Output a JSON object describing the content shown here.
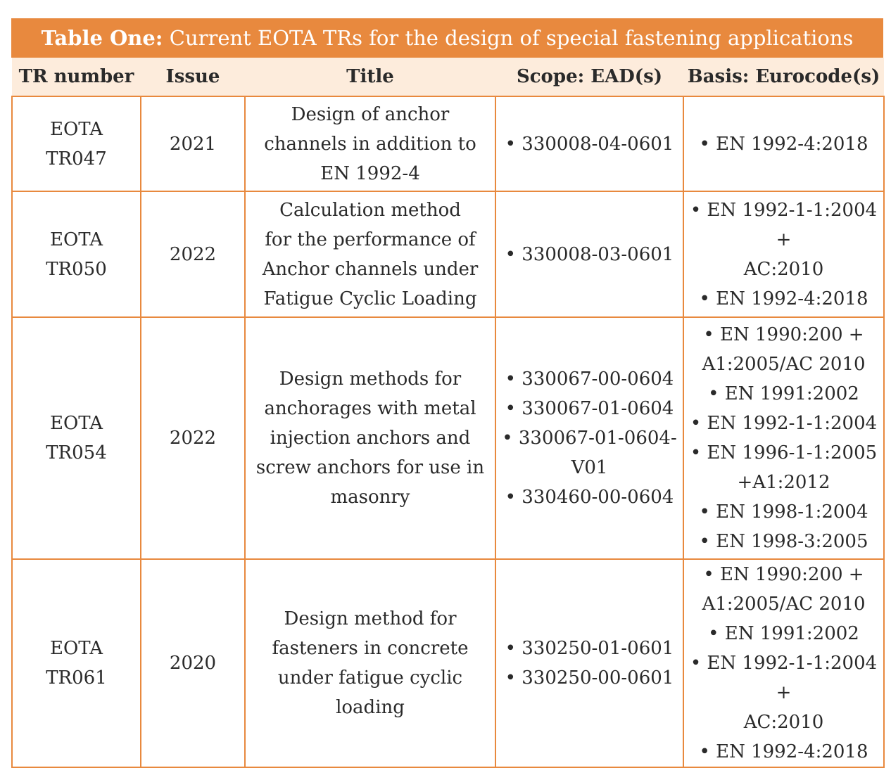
{
  "table_title": {
    "bold": "Table One:",
    "rest": " Current EOTA TRs for the design of special fastening applications"
  },
  "headers": [
    "TR number",
    "Issue",
    "Title",
    "Scope: EAD(s)",
    "Basis: Eurocode(s)"
  ],
  "rows": [
    {
      "tr_number": "EOTA TR047",
      "issue": "2021",
      "title": [
        "Design of anchor",
        "channels in addition to",
        "EN 1992-4"
      ],
      "scope": [
        "• 330008-04-0601"
      ],
      "basis": [
        "• EN 1992-4:2018"
      ]
    },
    {
      "tr_number": "EOTA TR050",
      "issue": "2022",
      "title": [
        "Calculation method",
        "for the performance of",
        "Anchor channels under",
        "Fatigue Cyclic Loading"
      ],
      "scope": [
        "• 330008-03-0601"
      ],
      "basis": [
        "• EN 1992-1-1:2004 +",
        "AC:2010",
        "• EN 1992-4:2018"
      ]
    },
    {
      "tr_number": "EOTA TR054",
      "issue": "2022",
      "title": [
        "Design methods for",
        "anchorages with metal",
        "injection anchors and",
        "screw anchors for use in",
        "masonry"
      ],
      "scope": [
        "• 330067-00-0604",
        "• 330067-01-0604",
        "• 330067-01-0604-",
        "V01",
        "• 330460-00-0604"
      ],
      "basis": [
        "• EN 1990:200 +",
        "A1:2005/AC 2010",
        "• EN 1991:2002",
        "• EN 1992-1-1:2004",
        "• EN 1996-1-1:2005",
        "+A1:2012",
        "• EN 1998-1:2004",
        "• EN 1998-3:2005"
      ]
    },
    {
      "tr_number": "EOTA TR061",
      "issue": "2020",
      "title": [
        "Design method for",
        "fasteners in concrete",
        "under fatigue cyclic",
        "loading"
      ],
      "scope": [
        "• 330250-01-0601",
        "• 330250-00-0601"
      ],
      "basis": [
        "• EN 1990:200 +",
        "A1:2005/AC 2010",
        "• EN 1991:2002",
        "• EN 1992-1-1:2004 +",
        "AC:2010",
        "• EN 1992-4:2018"
      ]
    }
  ],
  "colors": {
    "accent": "#e8893e",
    "header_bg": "#fdecdc",
    "text": "#2a2a2a"
  }
}
